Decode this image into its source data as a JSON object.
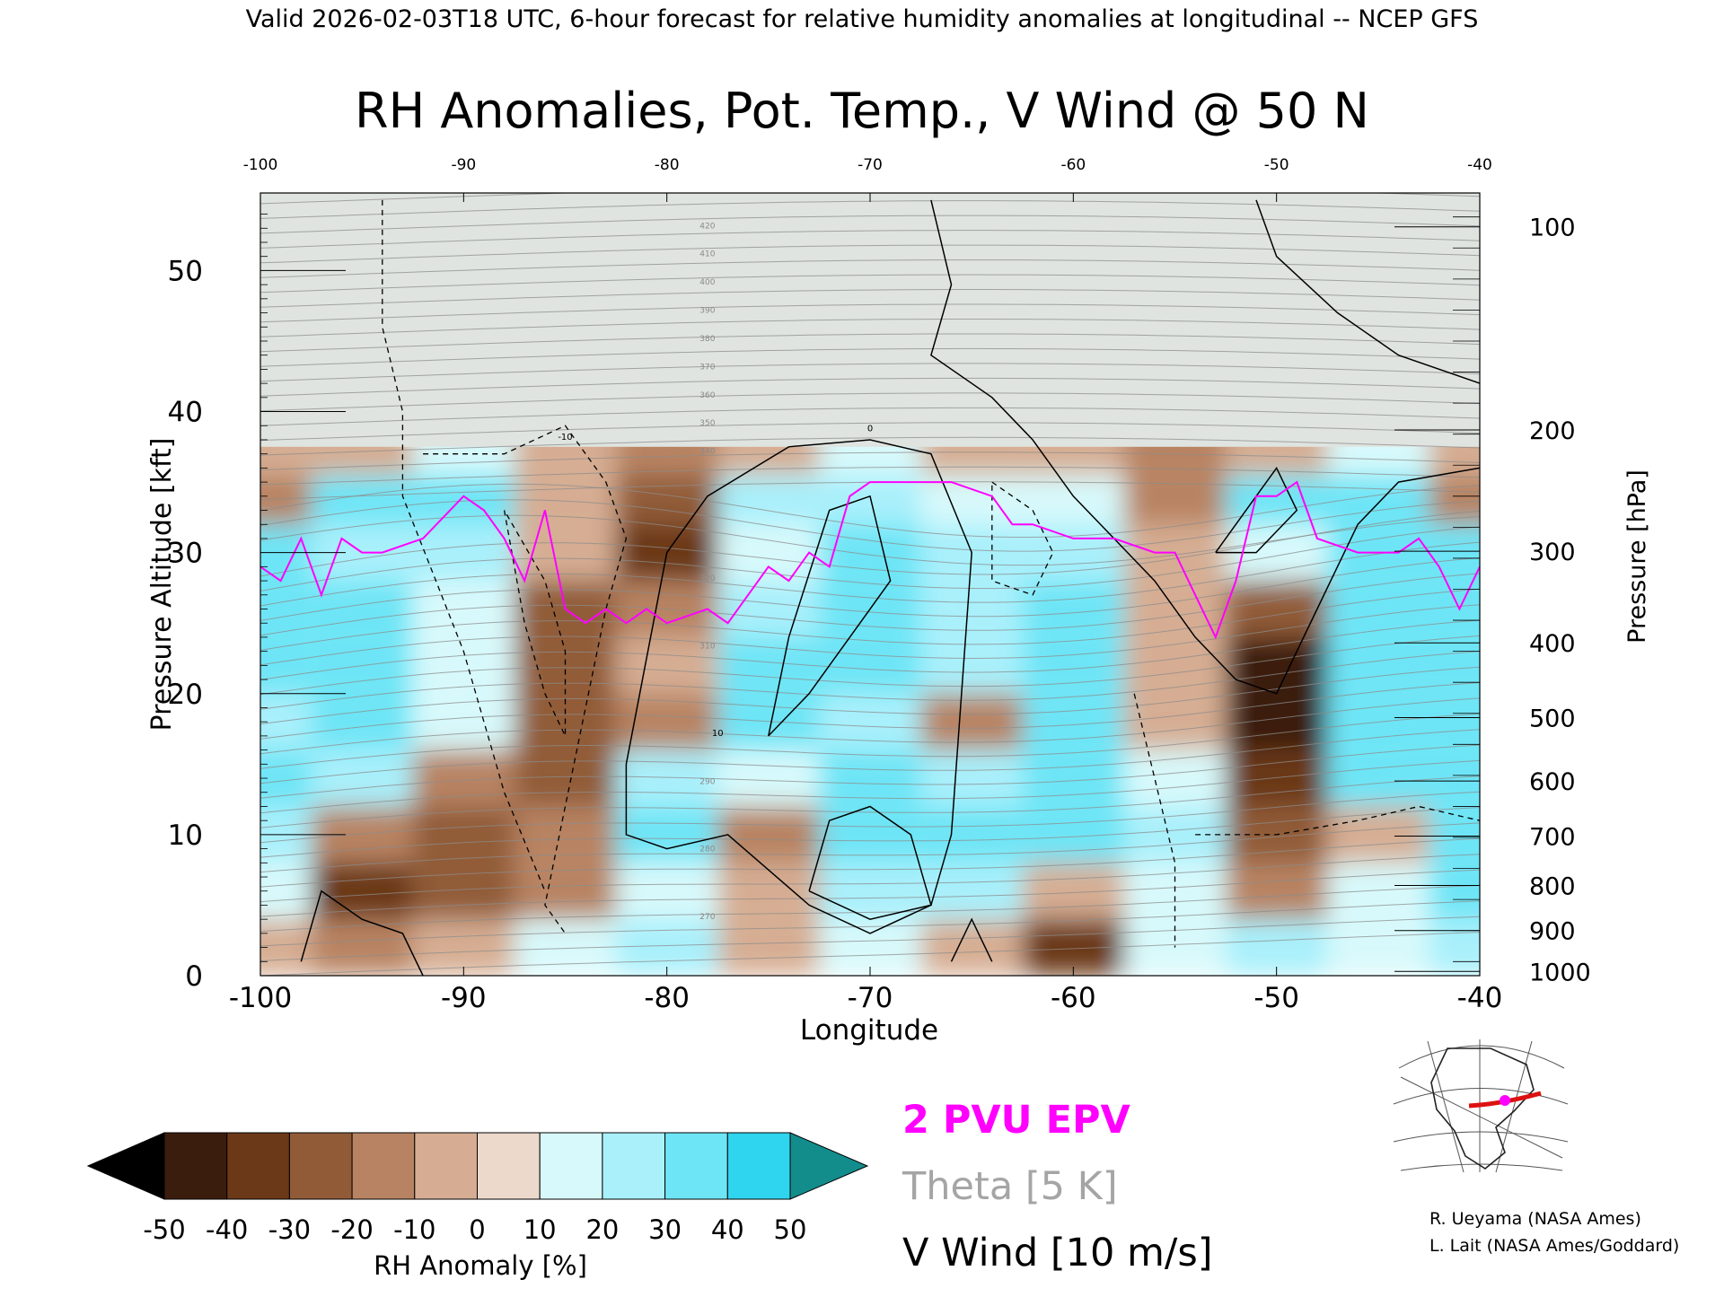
{
  "header": "Valid 2026-02-03T18 UTC, 6-hour forecast for relative humidity anomalies at longitudinal -- NCEP GFS",
  "chart_data": {
    "type": "heatmap",
    "title": "RH Anomalies, Pot. Temp., V Wind @ 50 N",
    "xlabel": "Longitude",
    "ylabel_left": "Pressure Altitude [kft]",
    "ylabel_right": "Pressure [hPa]",
    "xlim": [
      -100,
      -40
    ],
    "ylim": [
      0,
      55.5
    ],
    "x_ticks": [
      "-100",
      "-90",
      "-80",
      "-70",
      "-60",
      "-50",
      "-40"
    ],
    "top_x_ticks": [
      "-100",
      "-90",
      "-80",
      "-70",
      "-60",
      "-50",
      "-40"
    ],
    "left_ticks": [
      {
        "value": 0,
        "label": "0"
      },
      {
        "value": 10,
        "label": "10"
      },
      {
        "value": 20,
        "label": "20"
      },
      {
        "value": 30,
        "label": "30"
      },
      {
        "value": 40,
        "label": "40"
      },
      {
        "value": 50,
        "label": "50"
      }
    ],
    "right_ticks": [
      {
        "alt_kft": 0.3,
        "label": "1000"
      },
      {
        "alt_kft": 3.2,
        "label": "900"
      },
      {
        "alt_kft": 6.4,
        "label": "800"
      },
      {
        "alt_kft": 9.9,
        "label": "700"
      },
      {
        "alt_kft": 13.8,
        "label": "600"
      },
      {
        "alt_kft": 18.3,
        "label": "500"
      },
      {
        "alt_kft": 23.6,
        "label": "400"
      },
      {
        "alt_kft": 30.1,
        "label": "300"
      },
      {
        "alt_kft": 38.7,
        "label": "200"
      },
      {
        "alt_kft": 53.1,
        "label": "100"
      }
    ],
    "rh_anomaly_grid": {
      "x": [
        -100,
        -95,
        -90,
        -85,
        -80,
        -75,
        -70,
        -65,
        -60,
        -55,
        -50,
        -45,
        -40
      ],
      "y": [
        2,
        6,
        10,
        14,
        18,
        22,
        26,
        30,
        34,
        37
      ],
      "values": [
        [
          -10,
          -20,
          -10,
          10,
          20,
          -10,
          10,
          -10,
          -40,
          10,
          20,
          10,
          20
        ],
        [
          10,
          -40,
          -30,
          -20,
          10,
          -10,
          20,
          20,
          -10,
          10,
          -20,
          10,
          30
        ],
        [
          20,
          -20,
          -30,
          -20,
          30,
          -20,
          30,
          30,
          30,
          20,
          -30,
          -10,
          30
        ],
        [
          30,
          20,
          -20,
          -30,
          20,
          10,
          30,
          20,
          30,
          10,
          -40,
          30,
          30
        ],
        [
          20,
          30,
          10,
          -30,
          -20,
          30,
          20,
          -20,
          30,
          -10,
          -50,
          30,
          30
        ],
        [
          30,
          30,
          10,
          -30,
          -10,
          30,
          30,
          20,
          30,
          -10,
          -50,
          30,
          30
        ],
        [
          30,
          30,
          10,
          -30,
          -20,
          20,
          30,
          20,
          30,
          -10,
          -30,
          30,
          30
        ],
        [
          30,
          20,
          20,
          -10,
          -40,
          10,
          30,
          20,
          20,
          -10,
          10,
          30,
          30
        ],
        [
          -20,
          30,
          30,
          -10,
          -30,
          20,
          20,
          10,
          10,
          -20,
          30,
          30,
          -20
        ],
        [
          -10,
          -10,
          10,
          -10,
          -20,
          -10,
          10,
          -10,
          -10,
          -20,
          -10,
          10,
          -10
        ]
      ],
      "stratosphere_fill": "#dfe4e0"
    },
    "theta_contours_K": [
      270,
      280,
      290,
      310,
      320,
      340,
      350,
      360,
      370,
      380,
      390,
      400,
      410,
      420
    ],
    "epv_2pvu": {
      "x": [
        -100,
        -99,
        -98,
        -97,
        -96,
        -95,
        -94,
        -92,
        -90,
        -89,
        -88,
        -87,
        -86,
        -85,
        -84,
        -83,
        -82,
        -81,
        -80,
        -78,
        -77,
        -76,
        -75,
        -74,
        -73,
        -72,
        -71,
        -70,
        -68,
        -66,
        -64,
        -63,
        -62,
        -60,
        -58,
        -56,
        -55,
        -54,
        -53,
        -52,
        -51,
        -50,
        -49,
        -48,
        -46,
        -44,
        -43,
        -42,
        -41,
        -40
      ],
      "y": [
        29,
        28,
        31,
        27,
        31,
        30,
        30,
        31,
        34,
        33,
        31,
        28,
        33,
        26,
        25,
        26,
        25,
        26,
        25,
        26,
        25,
        27,
        29,
        28,
        30,
        29,
        34,
        35,
        35,
        35,
        34,
        32,
        32,
        31,
        31,
        30,
        30,
        27,
        24,
        28,
        34,
        34,
        35,
        31,
        30,
        30,
        31,
        29,
        26,
        29
      ]
    },
    "v_wind_contours_ms": [
      -10,
      0,
      10
    ],
    "colorbar": {
      "label": "RH Anomaly [%]",
      "ticks": [
        "-50",
        "-40",
        "-30",
        "-20",
        "-10",
        "0",
        "10",
        "20",
        "30",
        "40",
        "50"
      ],
      "colors": [
        "#000000",
        "#3b1d0d",
        "#6b3818",
        "#915b38",
        "#b88362",
        "#d6ad93",
        "#ecd9cc",
        "#d8f9fb",
        "#a9f0fb",
        "#6ee5f6",
        "#2fd4ee",
        "#14a8c8",
        "#0a7f9c",
        "#138c8c"
      ]
    },
    "legend": [
      {
        "label": "2 PVU EPV",
        "color": "#ff00ff"
      },
      {
        "label": "Theta [5 K]",
        "color": "#a5a5a5"
      },
      {
        "label": "V Wind [10 m/s]",
        "color": "#000000"
      }
    ]
  },
  "credits": [
    "R. Ueyama (NASA Ames)",
    "L. Lait (NASA Ames/Goddard)"
  ]
}
